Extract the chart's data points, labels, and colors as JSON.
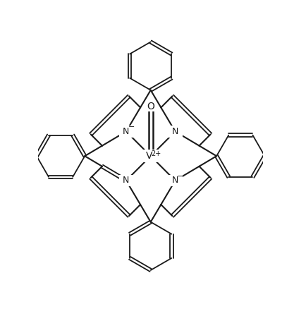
{
  "background": "#ffffff",
  "line_color": "#1a1a1a",
  "lw": 1.5,
  "lw_thin": 1.3,
  "figsize": [
    4.17,
    4.38
  ],
  "dpi": 100,
  "xlim": [
    -3.5,
    3.5
  ],
  "ylim": [
    -3.7,
    3.7
  ]
}
